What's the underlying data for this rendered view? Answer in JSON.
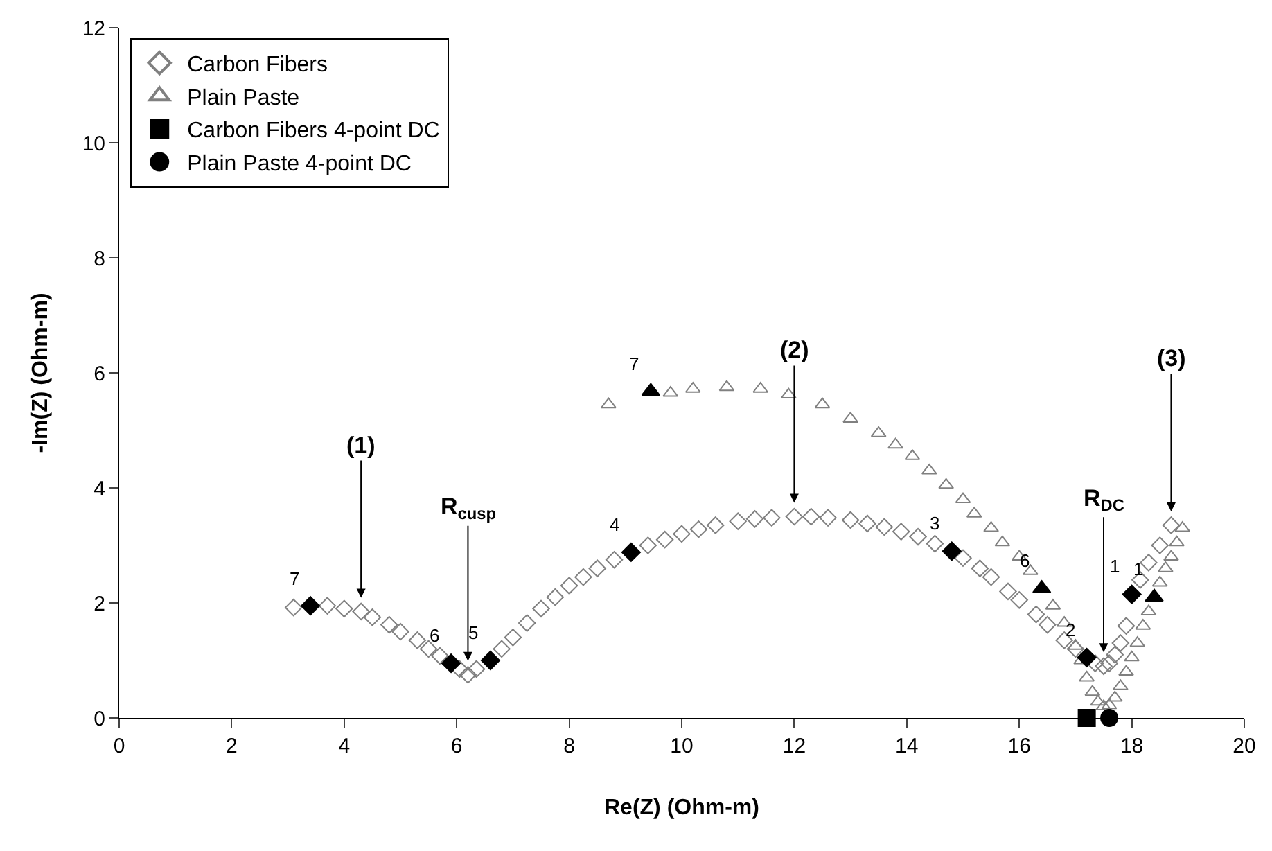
{
  "chart_data": {
    "type": "scatter",
    "xlabel": "Re(Z) (Ohm-m)",
    "ylabel": "-Im(Z) (Ohm-m)",
    "xlim": [
      0,
      20
    ],
    "xticks": [
      0,
      2,
      4,
      6,
      8,
      10,
      12,
      14,
      16,
      18,
      20
    ],
    "ylim": [
      0,
      12
    ],
    "yticks": [
      0,
      2,
      4,
      6,
      8,
      10,
      12
    ],
    "grid": false,
    "legend": "top left",
    "series": [
      {
        "name": "Carbon Fibers",
        "color": "#808080",
        "marker": "diamond-open",
        "x": [
          3.1,
          3.7,
          4.0,
          4.3,
          4.5,
          4.8,
          5.0,
          5.3,
          5.5,
          5.7,
          6.05,
          6.2,
          6.35,
          6.8,
          7.0,
          7.25,
          7.5,
          7.75,
          8.0,
          8.25,
          8.5,
          8.8,
          9.4,
          9.7,
          10.0,
          10.3,
          10.6,
          11.0,
          11.3,
          11.6,
          12.0,
          12.3,
          12.6,
          13.0,
          13.3,
          13.6,
          13.9,
          14.2,
          14.5,
          15.0,
          15.3,
          15.5,
          15.8,
          16.0,
          16.3,
          16.5,
          16.8,
          17.0,
          17.35,
          17.5,
          17.6,
          17.7,
          17.8,
          17.9,
          18.15,
          18.3,
          18.5,
          18.7
        ],
        "values": [
          1.92,
          1.95,
          1.9,
          1.85,
          1.75,
          1.62,
          1.5,
          1.35,
          1.2,
          1.08,
          0.85,
          0.75,
          0.85,
          1.2,
          1.4,
          1.65,
          1.9,
          2.1,
          2.3,
          2.45,
          2.6,
          2.75,
          3.0,
          3.1,
          3.2,
          3.28,
          3.35,
          3.42,
          3.46,
          3.48,
          3.5,
          3.5,
          3.48,
          3.44,
          3.38,
          3.32,
          3.24,
          3.15,
          3.03,
          2.78,
          2.6,
          2.45,
          2.2,
          2.05,
          1.8,
          1.62,
          1.35,
          1.2,
          0.95,
          0.9,
          0.95,
          1.1,
          1.3,
          1.6,
          2.4,
          2.7,
          3.0,
          3.35
        ]
      },
      {
        "name": "Plain Paste",
        "color": "#808080",
        "marker": "triangle-up-open",
        "x": [
          8.7,
          9.8,
          10.2,
          10.8,
          11.4,
          11.9,
          12.5,
          13.0,
          13.5,
          13.8,
          14.1,
          14.4,
          14.7,
          15.0,
          15.2,
          15.5,
          15.7,
          16.0,
          16.2,
          16.6,
          16.8,
          17.0,
          17.1,
          17.2,
          17.3,
          17.4,
          17.5,
          17.6,
          17.7,
          17.8,
          17.9,
          18.0,
          18.1,
          18.2,
          18.3,
          18.5,
          18.6,
          18.7,
          18.8,
          18.9
        ],
        "values": [
          5.45,
          5.65,
          5.72,
          5.75,
          5.72,
          5.62,
          5.45,
          5.2,
          4.95,
          4.75,
          4.55,
          4.3,
          4.05,
          3.8,
          3.55,
          3.3,
          3.05,
          2.8,
          2.55,
          1.95,
          1.65,
          1.25,
          1.0,
          0.7,
          0.45,
          0.28,
          0.2,
          0.22,
          0.35,
          0.55,
          0.8,
          1.05,
          1.3,
          1.6,
          1.85,
          2.35,
          2.6,
          2.8,
          3.05,
          3.3
        ]
      },
      {
        "name": "Carbon Fibers 4-point DC",
        "color": "#000000",
        "marker": "square",
        "x": [
          17.2
        ],
        "values": [
          0
        ]
      },
      {
        "name": "Plain Paste 4-point DC",
        "color": "#000000",
        "marker": "circle",
        "x": [
          17.6
        ],
        "values": [
          0
        ]
      },
      {
        "color": "#000000",
        "marker": "diamond",
        "x": [
          3.4,
          5.9,
          6.6,
          9.1,
          14.8,
          17.2,
          18.0
        ],
        "values": [
          1.95,
          0.95,
          1.0,
          2.88,
          2.9,
          1.05,
          2.15
        ]
      },
      {
        "color": "#000000",
        "marker": "triangle-up",
        "x": [
          9.45,
          16.4,
          18.4
        ],
        "values": [
          5.68,
          2.25,
          2.1
        ]
      }
    ],
    "annotations": [
      {
        "text": "7",
        "x": 3.4,
        "y": 1.95
      },
      {
        "text": "6",
        "x": 5.9,
        "y": 0.95
      },
      {
        "text": "5",
        "x": 6.6,
        "y": 1.0
      },
      {
        "text": "4",
        "x": 9.1,
        "y": 2.88
      },
      {
        "text": "3",
        "x": 14.8,
        "y": 2.9
      },
      {
        "text": "2",
        "x": 17.2,
        "y": 1.05
      },
      {
        "text": "1",
        "x": 18.0,
        "y": 2.15
      },
      {
        "text": "7",
        "x": 9.45,
        "y": 5.68
      },
      {
        "text": "6",
        "x": 16.4,
        "y": 2.25
      },
      {
        "text": "1",
        "x": 18.4,
        "y": 2.1
      },
      {
        "text": "(1)",
        "x": 4.3,
        "y": 1.85
      },
      {
        "text": "R$_{cusp}$",
        "x": 6.2,
        "y": 0.75
      },
      {
        "text": "(2)",
        "x": 12.0,
        "y": 3.5
      },
      {
        "text": "R$_{DC}$",
        "x": 17.5,
        "y": 0.9
      },
      {
        "text": "(3)",
        "x": 18.7,
        "y": 3.35
      }
    ]
  }
}
